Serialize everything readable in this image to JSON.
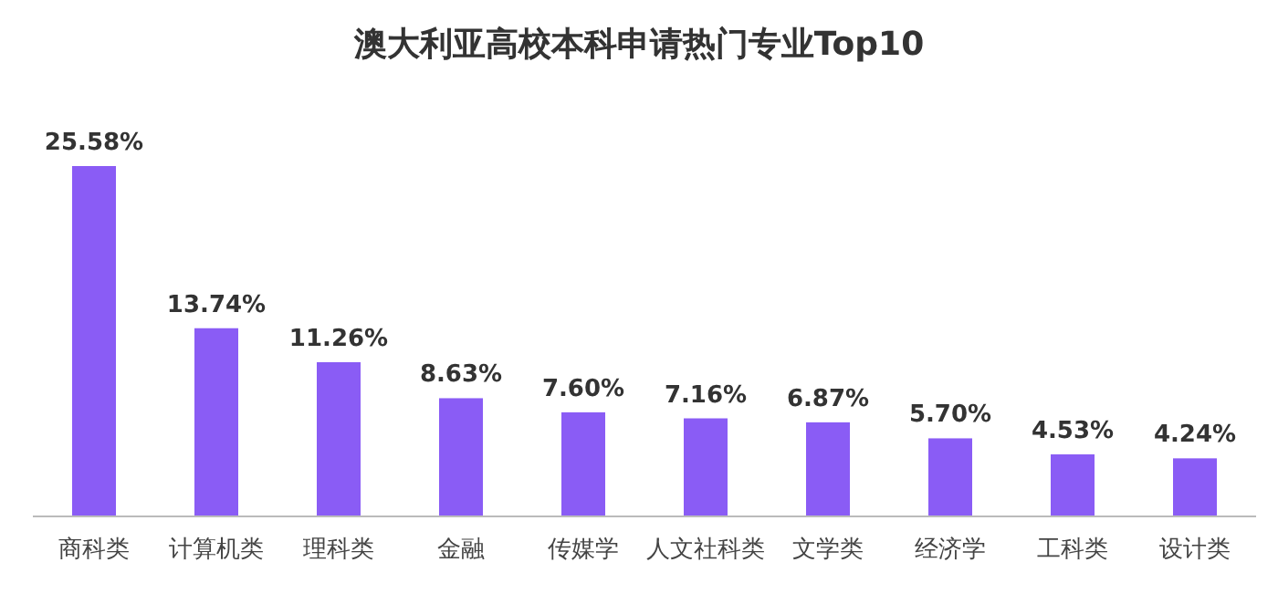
{
  "chart_data": {
    "type": "bar",
    "title": "澳大利亚高校本科申请热门专业Top10",
    "categories": [
      "商科类",
      "计算机类",
      "理科类",
      "金融",
      "传媒学",
      "人文社科类",
      "文学类",
      "经济学",
      "工科类",
      "设计类"
    ],
    "values": [
      25.58,
      13.74,
      11.26,
      8.63,
      7.6,
      7.16,
      6.87,
      5.7,
      4.53,
      4.24
    ],
    "value_labels": [
      "25.58%",
      "13.74%",
      "11.26%",
      "8.63%",
      "7.60%",
      "7.16%",
      "6.87%",
      "5.70%",
      "4.53%",
      "4.24%"
    ],
    "color": "#8a5cf5"
  }
}
